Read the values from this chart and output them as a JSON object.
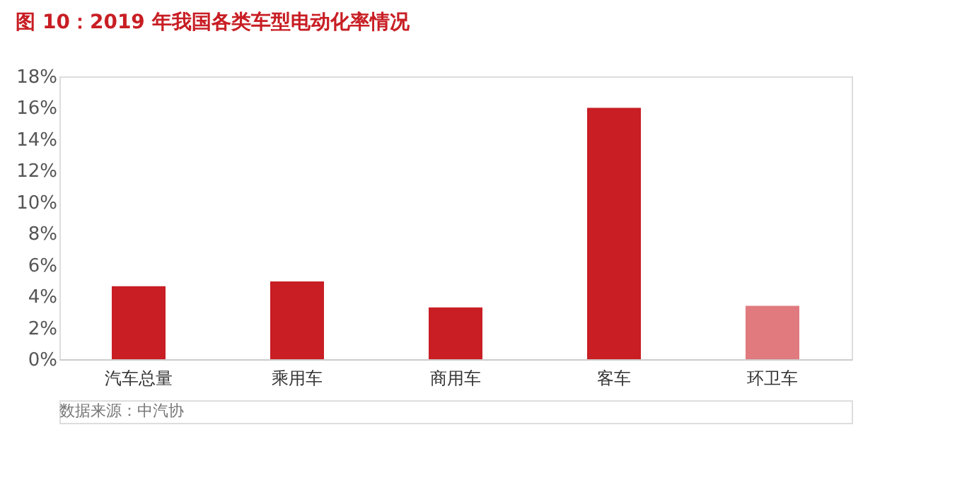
{
  "chart_data": {
    "type": "bar",
    "title": "图 10：2019 年我国各类车型电动化率情况",
    "categories": [
      "汽车总量",
      "乘用车",
      "商用车",
      "客车",
      "环卫车"
    ],
    "values": [
      4.65,
      4.95,
      3.3,
      16.0,
      3.4
    ],
    "colors": [
      "#c81e24",
      "#c81e24",
      "#c81e24",
      "#c81e24",
      "#e07a7e"
    ],
    "ylim": [
      0,
      18
    ],
    "yticks": [
      {
        "value": 0,
        "label": "0%"
      },
      {
        "value": 2,
        "label": "2%"
      },
      {
        "value": 4,
        "label": "4%"
      },
      {
        "value": 6,
        "label": "6%"
      },
      {
        "value": 8,
        "label": "8%"
      },
      {
        "value": 10,
        "label": "10%"
      },
      {
        "value": 12,
        "label": "12%"
      },
      {
        "value": 14,
        "label": "14%"
      },
      {
        "value": 16,
        "label": "16%"
      },
      {
        "value": 18,
        "label": "18%"
      }
    ],
    "grid": false,
    "annotations": [
      "数据来源：中汽协"
    ]
  }
}
